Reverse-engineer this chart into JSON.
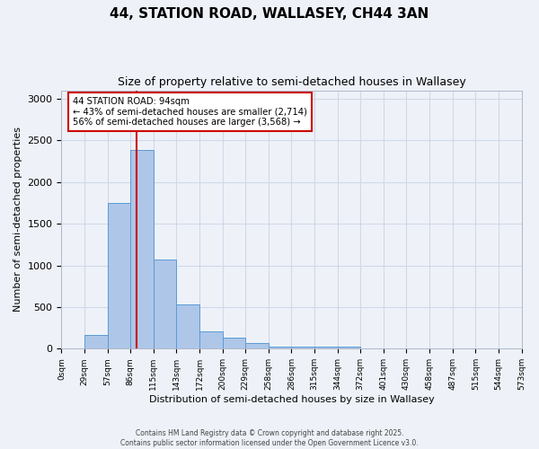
{
  "title": "44, STATION ROAD, WALLASEY, CH44 3AN",
  "subtitle": "Size of property relative to semi-detached houses in Wallasey",
  "xlabel": "Distribution of semi-detached houses by size in Wallasey",
  "ylabel": "Number of semi-detached properties",
  "bin_labels": [
    "0sqm",
    "29sqm",
    "57sqm",
    "86sqm",
    "115sqm",
    "143sqm",
    "172sqm",
    "200sqm",
    "229sqm",
    "258sqm",
    "286sqm",
    "315sqm",
    "344sqm",
    "372sqm",
    "401sqm",
    "430sqm",
    "458sqm",
    "487sqm",
    "515sqm",
    "544sqm",
    "573sqm"
  ],
  "n_bins": 20,
  "bar_heights": [
    0,
    170,
    1750,
    2380,
    1070,
    535,
    210,
    130,
    70,
    30,
    20,
    20,
    20,
    0,
    0,
    0,
    0,
    0,
    0,
    0
  ],
  "bar_color": "#aec6e8",
  "bar_edgecolor": "#5b9bd5",
  "grid_color": "#d0d8e8",
  "background_color": "#eef2f8",
  "vline_x": 3,
  "vline_color": "#cc0000",
  "annotation_text": "44 STATION ROAD: 94sqm\n← 43% of semi-detached houses are smaller (2,714)\n56% of semi-detached houses are larger (3,568) →",
  "annotation_box_color": "#ffffff",
  "annotation_box_edgecolor": "#cc0000",
  "ylim": [
    0,
    3100
  ],
  "yticks": [
    0,
    500,
    1000,
    1500,
    2000,
    2500,
    3000
  ],
  "footer_line1": "Contains HM Land Registry data © Crown copyright and database right 2025.",
  "footer_line2": "Contains public sector information licensed under the Open Government Licence v3.0."
}
